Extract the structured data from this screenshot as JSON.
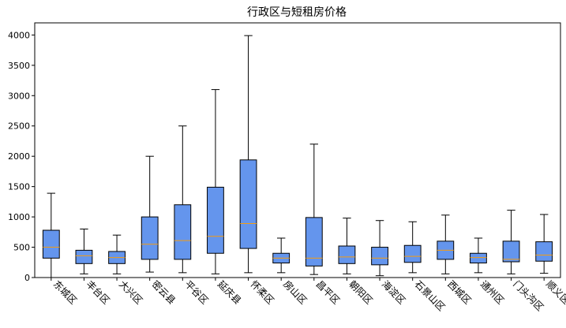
{
  "chart_data": {
    "type": "box",
    "title": "行政区与短租房价格",
    "xlabel": "",
    "ylabel": "",
    "ylim": [
      0,
      4200
    ],
    "y_ticks": [
      0,
      500,
      1000,
      1500,
      2000,
      2500,
      3000,
      3500,
      4000
    ],
    "grid": false,
    "categories": [
      "东城区",
      "丰台区",
      "大兴区",
      "密云县",
      "平谷区",
      "延庆县",
      "怀柔区",
      "房山区",
      "昌平区",
      "朝阳区",
      "海淀区",
      "石景山区",
      "西城区",
      "通州区",
      "门头沟区",
      "顺义区"
    ],
    "series": [
      {
        "box_color": "#6495ED",
        "median_color": "#F39C12",
        "boxes": [
          {
            "whislo": 0,
            "q1": 320,
            "median": 500,
            "q3": 780,
            "whishi": 1390
          },
          {
            "whislo": 60,
            "q1": 230,
            "median": 360,
            "q3": 450,
            "whishi": 800
          },
          {
            "whislo": 60,
            "q1": 230,
            "median": 330,
            "q3": 430,
            "whishi": 700
          },
          {
            "whislo": 90,
            "q1": 300,
            "median": 550,
            "q3": 1000,
            "whishi": 2000
          },
          {
            "whislo": 80,
            "q1": 300,
            "median": 610,
            "q3": 1200,
            "whishi": 2500
          },
          {
            "whislo": 60,
            "q1": 400,
            "median": 680,
            "q3": 1490,
            "whishi": 3100
          },
          {
            "whislo": 80,
            "q1": 480,
            "median": 890,
            "q3": 1940,
            "whishi": 3990
          },
          {
            "whislo": 80,
            "q1": 240,
            "median": 320,
            "q3": 400,
            "whishi": 650
          },
          {
            "whislo": 50,
            "q1": 190,
            "median": 320,
            "q3": 990,
            "whishi": 2200
          },
          {
            "whislo": 60,
            "q1": 230,
            "median": 340,
            "q3": 520,
            "whishi": 980
          },
          {
            "whislo": 30,
            "q1": 210,
            "median": 320,
            "q3": 500,
            "whishi": 940
          },
          {
            "whislo": 80,
            "q1": 250,
            "median": 350,
            "q3": 530,
            "whishi": 920
          },
          {
            "whislo": 60,
            "q1": 300,
            "median": 450,
            "q3": 600,
            "whishi": 1030
          },
          {
            "whislo": 80,
            "q1": 240,
            "median": 330,
            "q3": 400,
            "whishi": 650
          },
          {
            "whislo": 60,
            "q1": 260,
            "median": 300,
            "q3": 600,
            "whishi": 1110
          },
          {
            "whislo": 70,
            "q1": 270,
            "median": 370,
            "q3": 590,
            "whishi": 1040
          }
        ]
      }
    ]
  }
}
